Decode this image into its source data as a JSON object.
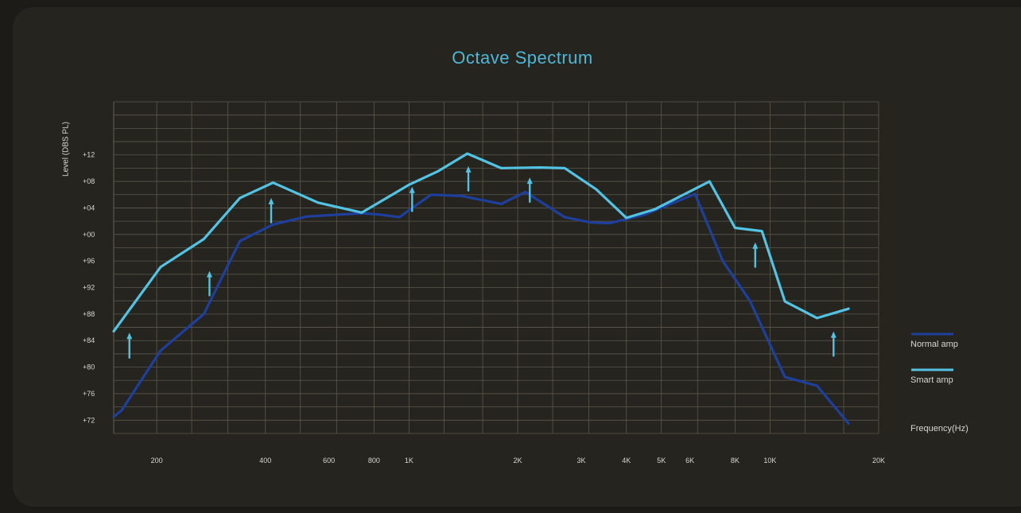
{
  "colors": {
    "background": "#1c1b17",
    "panel": "#25241f",
    "grid": "#5d574c",
    "text": "#d8d6cf",
    "title": "#4fb7d6",
    "normal": "#1e3f9c",
    "smart": "#53c3e4",
    "arrow": "#53c3e4"
  },
  "chart_data": {
    "type": "line",
    "title": "Octave Spectrum",
    "ylabel": "Level (DBS PL)",
    "xlabel": "Frequency(Hz)",
    "ylim": [
      70,
      120
    ],
    "y_ticks": [
      {
        "value": 72,
        "label": "+72"
      },
      {
        "value": 76,
        "label": "+76"
      },
      {
        "value": 80,
        "label": "+80"
      },
      {
        "value": 84,
        "label": "+84"
      },
      {
        "value": 88,
        "label": "+88"
      },
      {
        "value": 92,
        "label": "+92"
      },
      {
        "value": 96,
        "label": "+96"
      },
      {
        "value": 100,
        "label": "+00"
      },
      {
        "value": 104,
        "label": "+04"
      },
      {
        "value": 108,
        "label": "+08"
      },
      {
        "value": 112,
        "label": "+12"
      }
    ],
    "x_ticks": [
      {
        "value": 200,
        "label": "200"
      },
      {
        "value": 400,
        "label": "400"
      },
      {
        "value": 600,
        "label": "600"
      },
      {
        "value": 800,
        "label": "800"
      },
      {
        "value": 1000,
        "label": "1K"
      },
      {
        "value": 2000,
        "label": "2K"
      },
      {
        "value": 3000,
        "label": "3K"
      },
      {
        "value": 4000,
        "label": "4K"
      },
      {
        "value": 5000,
        "label": "5K"
      },
      {
        "value": 6000,
        "label": "6K"
      },
      {
        "value": 8000,
        "label": "8K"
      },
      {
        "value": 10000,
        "label": "10K"
      },
      {
        "value": 20000,
        "label": "20K"
      }
    ],
    "x_grid": [
      200,
      250,
      315,
      400,
      500,
      630,
      800,
      1000,
      1250,
      1600,
      2000,
      2500,
      3150,
      4000,
      5000,
      6300,
      8000,
      10000,
      12500,
      16000,
      20000
    ],
    "y_grid_step": 2,
    "series": [
      {
        "name": "Normal amp",
        "color": "#1e3f9c",
        "points": [
          [
            152,
            72.5
          ],
          [
            160,
            73.5
          ],
          [
            205,
            82.5
          ],
          [
            270,
            88
          ],
          [
            340,
            99
          ],
          [
            420,
            101.5
          ],
          [
            520,
            102.7
          ],
          [
            640,
            103
          ],
          [
            740,
            103.2
          ],
          [
            830,
            103
          ],
          [
            940,
            102.6
          ],
          [
            1150,
            106
          ],
          [
            1400,
            105.8
          ],
          [
            1800,
            104.6
          ],
          [
            2100,
            106.4
          ],
          [
            2700,
            102.6
          ],
          [
            3200,
            101.8
          ],
          [
            3600,
            101.7
          ],
          [
            4500,
            103
          ],
          [
            6200,
            106.1
          ],
          [
            7400,
            96
          ],
          [
            8800,
            90
          ],
          [
            11000,
            78.5
          ],
          [
            13500,
            77.2
          ],
          [
            16500,
            71.5
          ]
        ]
      },
      {
        "name": "Smart amp",
        "color": "#53c3e4",
        "points": [
          [
            152,
            85.4
          ],
          [
            205,
            95.1
          ],
          [
            270,
            99.3
          ],
          [
            340,
            105.5
          ],
          [
            420,
            107.8
          ],
          [
            560,
            104.8
          ],
          [
            740,
            103.3
          ],
          [
            1000,
            107.5
          ],
          [
            1200,
            109.5
          ],
          [
            1450,
            112.2
          ],
          [
            1800,
            110
          ],
          [
            2300,
            110.1
          ],
          [
            2700,
            110
          ],
          [
            3300,
            106.8
          ],
          [
            4000,
            102.5
          ],
          [
            4800,
            103.8
          ],
          [
            6800,
            108
          ],
          [
            8000,
            101
          ],
          [
            9500,
            100.5
          ],
          [
            11000,
            89.9
          ],
          [
            13500,
            87.4
          ],
          [
            16500,
            88.8
          ]
        ]
      }
    ],
    "annotations": [
      {
        "type": "arrow",
        "x": 168,
        "y_from": 81.3,
        "y_to": 85.2
      },
      {
        "type": "arrow",
        "x": 280,
        "y_from": 90.7,
        "y_to": 94.5
      },
      {
        "type": "arrow",
        "x": 415,
        "y_from": 101.7,
        "y_to": 105.5
      },
      {
        "type": "arrow",
        "x": 1020,
        "y_from": 103.4,
        "y_to": 107.2
      },
      {
        "type": "arrow",
        "x": 1460,
        "y_from": 106.5,
        "y_to": 110.3
      },
      {
        "type": "arrow",
        "x": 2160,
        "y_from": 104.8,
        "y_to": 108.6
      },
      {
        "type": "arrow",
        "x": 9100,
        "y_from": 95,
        "y_to": 98.8
      },
      {
        "type": "arrow",
        "x": 15000,
        "y_from": 81.6,
        "y_to": 85.4
      }
    ],
    "legend_position": "right"
  },
  "legend": {
    "normal_label": "Normal amp",
    "smart_label": "Smart amp",
    "frequency_label": "Frequency(Hz)"
  }
}
